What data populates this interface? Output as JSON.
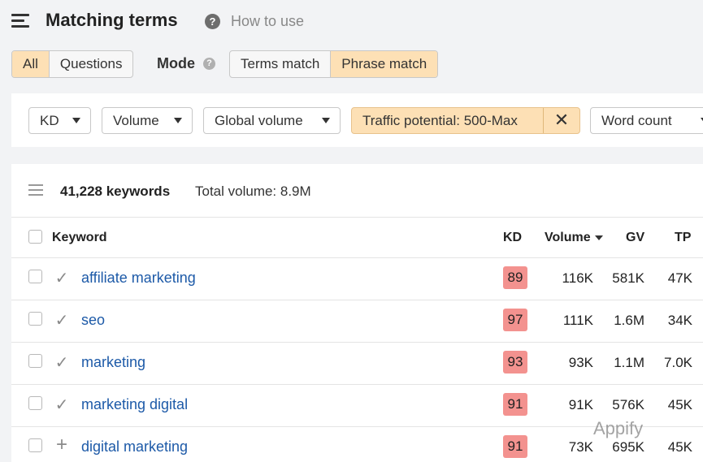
{
  "header": {
    "title": "Matching terms",
    "help_glyph": "?",
    "how_to_label": "How to use"
  },
  "scope_tabs": [
    {
      "label": "All",
      "active": true
    },
    {
      "label": "Questions",
      "active": false
    }
  ],
  "mode": {
    "label": "Mode",
    "help_glyph": "?",
    "options": [
      {
        "label": "Terms match",
        "active": false
      },
      {
        "label": "Phrase match",
        "active": true
      }
    ]
  },
  "filters": {
    "kd": "KD",
    "volume": "Volume",
    "global_volume": "Global volume",
    "traffic_potential": "Traffic potential: 500-Max",
    "traffic_clear": "✕",
    "word_count": "Word count"
  },
  "summary": {
    "keyword_count": "41,228 keywords",
    "total_volume": "Total volume: 8.9M"
  },
  "columns": {
    "keyword": "Keyword",
    "kd": "KD",
    "volume": "Volume",
    "gv": "GV",
    "tp": "TP"
  },
  "rows": [
    {
      "mark": "✓",
      "keyword": "affiliate marketing",
      "kd": "89",
      "volume": "116K",
      "gv": "581K",
      "tp": "47K"
    },
    {
      "mark": "✓",
      "keyword": "seo",
      "kd": "97",
      "volume": "111K",
      "gv": "1.6M",
      "tp": "34K"
    },
    {
      "mark": "✓",
      "keyword": "marketing",
      "kd": "93",
      "volume": "93K",
      "gv": "1.1M",
      "tp": "7.0K"
    },
    {
      "mark": "✓",
      "keyword": "marketing digital",
      "kd": "91",
      "volume": "91K",
      "gv": "576K",
      "tp": "45K"
    },
    {
      "mark": "+",
      "keyword": "digital marketing",
      "kd": "91",
      "volume": "73K",
      "gv": "695K",
      "tp": "45K"
    }
  ],
  "watermark": "Appify",
  "colors": {
    "active_tab": "#fde0b5",
    "kd_badge": "#f3928f",
    "link": "#1d5aa8"
  }
}
